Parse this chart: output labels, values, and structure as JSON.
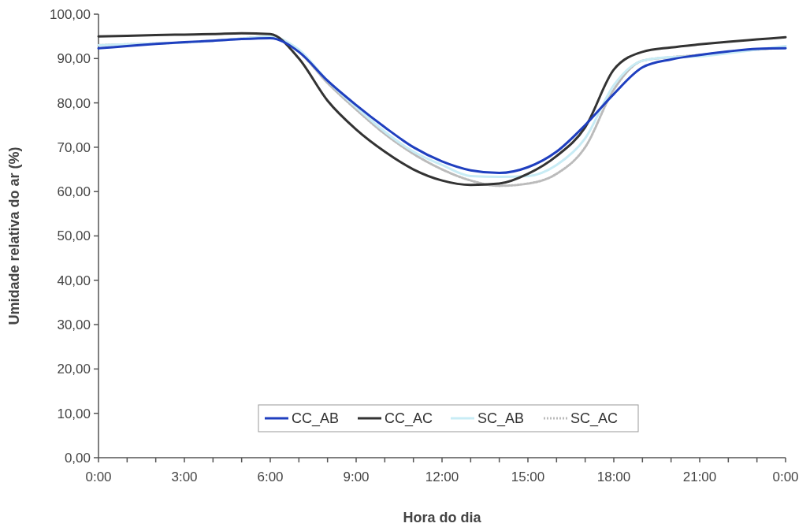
{
  "chart_data": {
    "type": "line",
    "xlabel": "Hora do dia",
    "ylabel": "Umidade relativa do ar (%)",
    "x": [
      0,
      1,
      2,
      3,
      4,
      5,
      6,
      7,
      8,
      9,
      10,
      11,
      12,
      13,
      14,
      15,
      16,
      17,
      18,
      19,
      20,
      21,
      22,
      23,
      24
    ],
    "series": [
      {
        "name": "CC_AB",
        "color": "#1f3fbf",
        "line_style": "solid",
        "values": [
          92.3,
          92.8,
          93.3,
          93.7,
          94.0,
          94.4,
          94.6,
          91.5,
          85,
          79.5,
          74.5,
          70,
          66.8,
          64.8,
          64.2,
          65.5,
          69,
          75,
          82,
          88,
          89.8,
          90.8,
          91.6,
          92.2,
          92.3
        ]
      },
      {
        "name": "CC_AC",
        "color": "#333333",
        "line_style": "solid",
        "values": [
          95,
          95.1,
          95.3,
          95.4,
          95.5,
          95.7,
          95.5,
          90,
          80.5,
          74,
          69,
          65,
          62.5,
          61.5,
          61.8,
          64,
          68,
          74.5,
          87.5,
          91.5,
          92.5,
          93.2,
          93.8,
          94.3,
          94.8
        ]
      },
      {
        "name": "SC_AB",
        "color": "#c8ecf5",
        "line_style": "solid",
        "values": [
          93,
          93.2,
          93.4,
          93.6,
          94,
          94.5,
          95,
          92,
          85,
          79,
          73.5,
          69,
          66,
          63.5,
          63.3,
          63.5,
          66,
          72,
          84,
          89.5,
          90.3,
          90.5,
          91.2,
          92,
          92.8
        ]
      },
      {
        "name": "SC_AC",
        "color": "#bbbbbb",
        "line_style": "dotted",
        "values": [
          93,
          93.2,
          93.4,
          93.6,
          94,
          94.5,
          95,
          91.5,
          84.5,
          78.5,
          73,
          68.5,
          65,
          62.5,
          61.3,
          61.8,
          64,
          70,
          83,
          89.5,
          90.3,
          90.8,
          91.5,
          92,
          92.5
        ]
      }
    ],
    "xlim": [
      0,
      24
    ],
    "xticks": [
      {
        "value": 0,
        "label": "0:00"
      },
      {
        "value": 1,
        "label": null
      },
      {
        "value": 2,
        "label": null
      },
      {
        "value": 3,
        "label": "3:00"
      },
      {
        "value": 4,
        "label": null
      },
      {
        "value": 5,
        "label": null
      },
      {
        "value": 6,
        "label": "6:00"
      },
      {
        "value": 7,
        "label": null
      },
      {
        "value": 8,
        "label": null
      },
      {
        "value": 9,
        "label": "9:00"
      },
      {
        "value": 10,
        "label": null
      },
      {
        "value": 11,
        "label": null
      },
      {
        "value": 12,
        "label": "12:00"
      },
      {
        "value": 13,
        "label": null
      },
      {
        "value": 14,
        "label": null
      },
      {
        "value": 15,
        "label": "15:00"
      },
      {
        "value": 16,
        "label": null
      },
      {
        "value": 17,
        "label": null
      },
      {
        "value": 18,
        "label": "18:00"
      },
      {
        "value": 19,
        "label": null
      },
      {
        "value": 20,
        "label": null
      },
      {
        "value": 21,
        "label": "21:00"
      },
      {
        "value": 22,
        "label": null
      },
      {
        "value": 23,
        "label": null
      },
      {
        "value": 24,
        "label": "0:00"
      }
    ],
    "ylim": [
      0,
      100
    ],
    "yticks": [
      {
        "value": 0,
        "label": "0,00"
      },
      {
        "value": 10,
        "label": "10,00"
      },
      {
        "value": 20,
        "label": "20,00"
      },
      {
        "value": 30,
        "label": "30,00"
      },
      {
        "value": 40,
        "label": "40,00"
      },
      {
        "value": 50,
        "label": "50,00"
      },
      {
        "value": 60,
        "label": "60,00"
      },
      {
        "value": 70,
        "label": "70,00"
      },
      {
        "value": 80,
        "label": "80,00"
      },
      {
        "value": 90,
        "label": "90,00"
      },
      {
        "value": 100,
        "label": "100,00"
      }
    ],
    "grid": false,
    "legend": "bottom",
    "marker": "none"
  }
}
